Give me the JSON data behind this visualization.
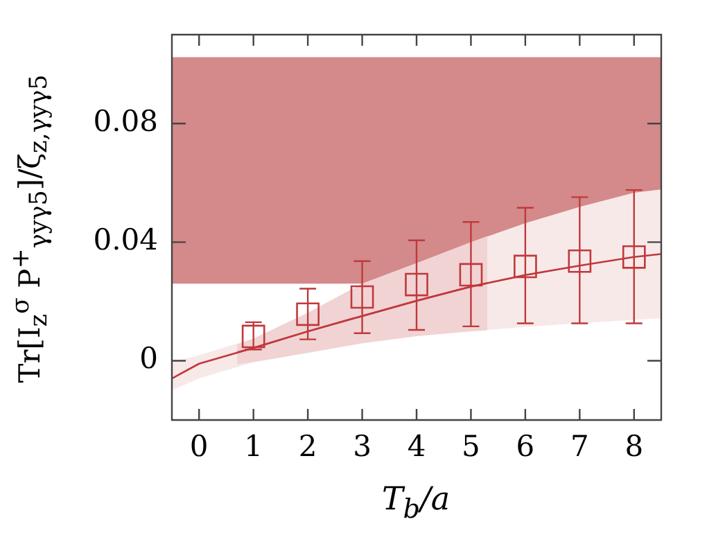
{
  "chart_data": {
    "type": "scatter",
    "xlabel": "T$_{b}$/a",
    "ylabel": "Tr[I$_{z}$$^{σ}$ P$^{+}$$_{γyγ5}$]/ζ$_{z,γyγ5}$",
    "xlim": [
      -0.5,
      8.5
    ],
    "xticks": [
      0,
      1,
      2,
      3,
      4,
      5,
      6,
      7,
      8
    ],
    "ylim": [
      -0.02,
      0.11
    ],
    "yticks": [
      0,
      0.04,
      0.08
    ],
    "grid": false,
    "legend": false,
    "bands": [
      {
        "axis": "y",
        "from": 0.026,
        "to": 0.1024,
        "color": "#d4898a"
      }
    ],
    "series": [
      {
        "type": "line",
        "color": "#c0393b",
        "marker": "none",
        "x": [
          -0.5,
          0,
          1,
          2,
          3,
          4,
          5,
          6,
          7,
          8,
          8.5
        ],
        "values": [
          -0.006,
          -0.001,
          0.0043,
          0.0099,
          0.0151,
          0.0202,
          0.025,
          0.0289,
          0.0321,
          0.035,
          0.036
        ],
        "lower": [
          -0.01,
          -0.006,
          -0.0005,
          0.0027,
          0.0059,
          0.0083,
          0.0099,
          0.0114,
          0.0127,
          0.0138,
          0.0143
        ],
        "upper": [
          -0.0005,
          0.0019,
          0.0075,
          0.0162,
          0.026,
          0.0329,
          0.04,
          0.0464,
          0.0519,
          0.0567,
          0.0578
        ]
      },
      {
        "type": "line",
        "color": "#c0393b",
        "marker": "none",
        "x": [
          0.7,
          1,
          2,
          3,
          4,
          5,
          5.3
        ],
        "values": [
          0.0028,
          0.0043,
          0.0099,
          0.0151,
          0.0202,
          0.025,
          0.0262
        ],
        "lower": [
          -0.0012,
          -0.0005,
          0.0027,
          0.0059,
          0.0083,
          0.0099,
          0.0103
        ],
        "upper": [
          0.0055,
          0.0075,
          0.0162,
          0.026,
          0.0329,
          0.04,
          0.042
        ]
      },
      {
        "type": "scatter",
        "color": "#c0393b",
        "marker": "square",
        "x": [
          1,
          2,
          3,
          4,
          5,
          6,
          7,
          8
        ],
        "values": [
          0.0082,
          0.0157,
          0.0215,
          0.0257,
          0.029,
          0.0318,
          0.0336,
          0.035
        ],
        "errors": [
          [
            0.0038,
            0.013
          ],
          [
            0.0072,
            0.0243
          ],
          [
            0.0093,
            0.0336
          ],
          [
            0.0104,
            0.0406
          ],
          [
            0.0116,
            0.0468
          ],
          [
            0.0126,
            0.0516
          ],
          [
            0.0126,
            0.0552
          ],
          [
            0.0126,
            0.0576
          ]
        ]
      }
    ]
  }
}
